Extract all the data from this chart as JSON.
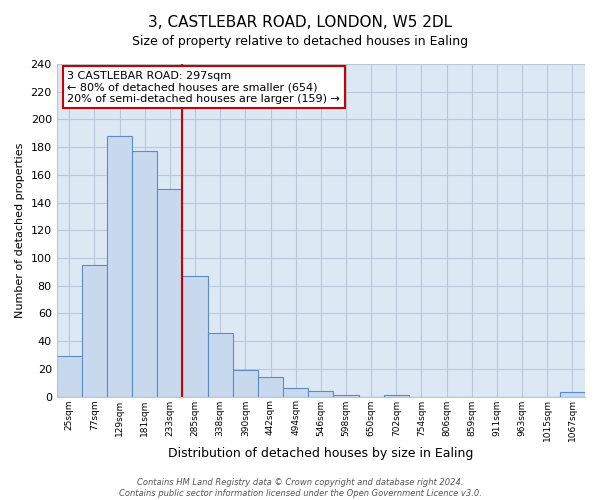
{
  "title": "3, CASTLEBAR ROAD, LONDON, W5 2DL",
  "subtitle": "Size of property relative to detached houses in Ealing",
  "xlabel": "Distribution of detached houses by size in Ealing",
  "ylabel": "Number of detached properties",
  "bar_labels": [
    "25sqm",
    "77sqm",
    "129sqm",
    "181sqm",
    "233sqm",
    "285sqm",
    "338sqm",
    "390sqm",
    "442sqm",
    "494sqm",
    "546sqm",
    "598sqm",
    "650sqm",
    "702sqm",
    "754sqm",
    "806sqm",
    "859sqm",
    "911sqm",
    "963sqm",
    "1015sqm",
    "1067sqm"
  ],
  "bar_values": [
    29,
    95,
    188,
    177,
    150,
    87,
    46,
    19,
    14,
    6,
    4,
    1,
    0,
    1,
    0,
    0,
    0,
    0,
    0,
    0,
    3
  ],
  "bar_color": "#c8d9ee",
  "bar_edge_color": "#5b8cc8",
  "plot_bg_color": "#dde8f5",
  "ylim": [
    0,
    240
  ],
  "yticks": [
    0,
    20,
    40,
    60,
    80,
    100,
    120,
    140,
    160,
    180,
    200,
    220,
    240
  ],
  "property_line_x": 5.0,
  "property_line_color": "#cc0000",
  "annotation_text": "3 CASTLEBAR ROAD: 297sqm\n← 80% of detached houses are smaller (654)\n20% of semi-detached houses are larger (159) →",
  "annotation_box_color": "#ffffff",
  "annotation_box_edge": "#cc0000",
  "footer_line1": "Contains HM Land Registry data © Crown copyright and database right 2024.",
  "footer_line2": "Contains public sector information licensed under the Open Government Licence v3.0.",
  "bg_color": "#ffffff",
  "grid_color": "#b8c8d8"
}
